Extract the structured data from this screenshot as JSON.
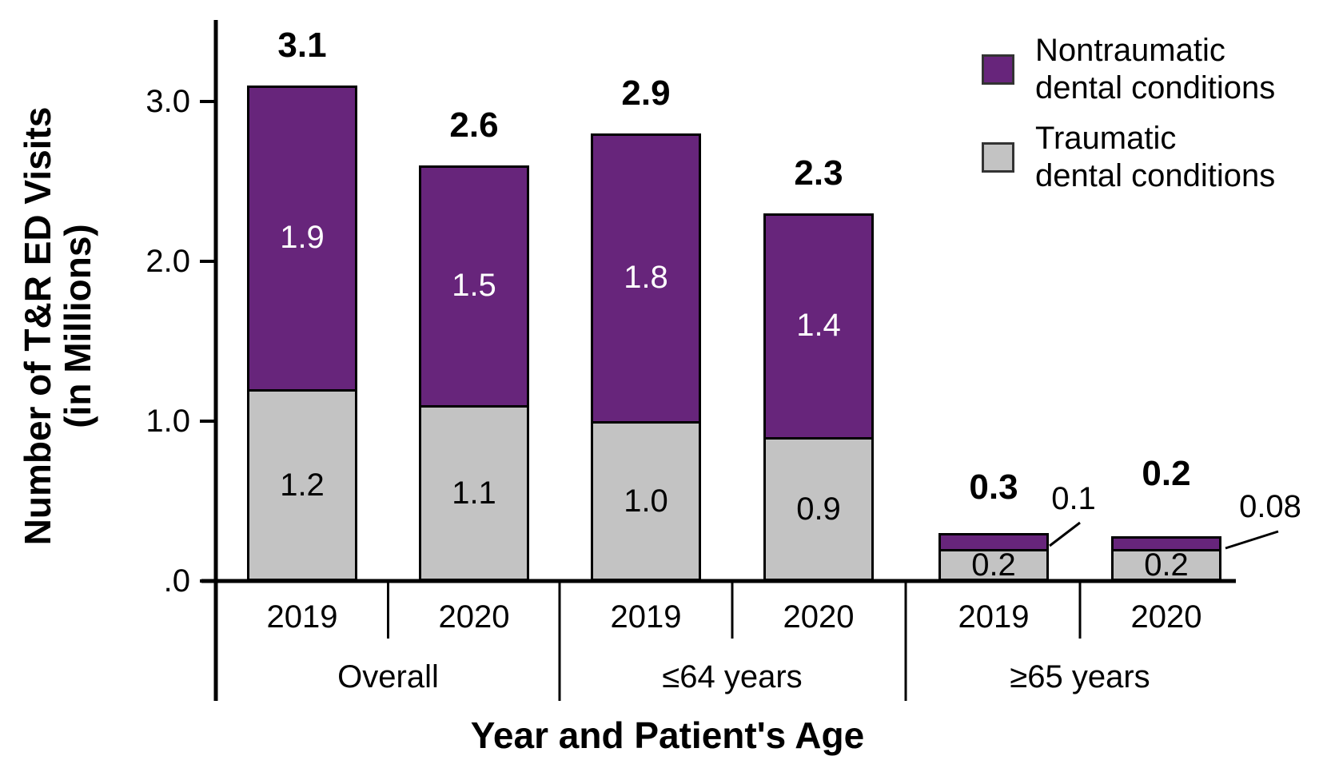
{
  "chart_data": {
    "type": "bar",
    "stacked": true,
    "title": "",
    "xlabel": "Year and Patient's Age",
    "ylabel_lines": [
      "Number of T&R ED Visits",
      "(in Millions)"
    ],
    "ylim": [
      0,
      3.5
    ],
    "grid": false,
    "legend_position": "top-right",
    "yticks": [
      {
        "value": 0,
        "label": ".0"
      },
      {
        "value": 1,
        "label": "1.0"
      },
      {
        "value": 2,
        "label": "2.0"
      },
      {
        "value": 3,
        "label": "3.0"
      }
    ],
    "categories": [
      "2019",
      "2020",
      "2019",
      "2020",
      "2019",
      "2020"
    ],
    "groups": [
      {
        "label": "Overall",
        "bar_indices": [
          0,
          1
        ]
      },
      {
        "label": "≤64 years",
        "bar_indices": [
          2,
          3
        ]
      },
      {
        "label": "≥65 years",
        "bar_indices": [
          4,
          5
        ]
      }
    ],
    "series": [
      {
        "name": "Traumatic dental conditions",
        "key": "traumatic",
        "color": "#C3C3C3",
        "values": [
          1.2,
          1.1,
          1.0,
          0.9,
          0.2,
          0.2
        ],
        "labels": [
          "1.2",
          "1.1",
          "1.0",
          "0.9",
          "0.2",
          "0.2"
        ]
      },
      {
        "name": "Nontraumatic dental conditions",
        "key": "nontraumatic",
        "color": "#67257B",
        "values": [
          1.9,
          1.5,
          1.8,
          1.4,
          0.1,
          0.08
        ],
        "labels": [
          "1.9",
          "1.5",
          "1.8",
          "1.4",
          "0.1",
          "0.08"
        ],
        "callout_label_indices": [
          4,
          5
        ]
      }
    ],
    "totals": [
      "3.1",
      "2.6",
      "2.9",
      "2.3",
      "0.3",
      "0.2"
    ],
    "legend": [
      {
        "key": "nontraumatic",
        "label_lines": [
          "Nontraumatic",
          "dental conditions"
        ],
        "color": "#67257B"
      },
      {
        "key": "traumatic",
        "label_lines": [
          "Traumatic",
          "dental conditions"
        ],
        "color": "#C3C3C3"
      }
    ],
    "colors": {
      "nontraumatic": "#67257B",
      "traumatic": "#C3C3C3",
      "axis": "#000000",
      "text": "#000000",
      "label_on_purple": "#FFFFFF"
    }
  }
}
